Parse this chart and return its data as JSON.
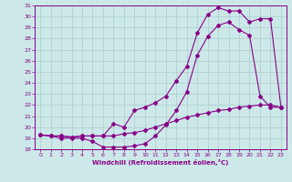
{
  "xlabel": "Windchill (Refroidissement éolien,°C)",
  "xlim": [
    -0.5,
    23.5
  ],
  "ylim": [
    18,
    31
  ],
  "yticks": [
    18,
    19,
    20,
    21,
    22,
    23,
    24,
    25,
    26,
    27,
    28,
    29,
    30,
    31
  ],
  "xticks": [
    0,
    1,
    2,
    3,
    4,
    5,
    6,
    7,
    8,
    9,
    10,
    11,
    12,
    13,
    14,
    15,
    16,
    17,
    18,
    19,
    20,
    21,
    22,
    23
  ],
  "line_color": "#880088",
  "bg_color": "#cce8e8",
  "grid_color": "#aacccc",
  "line1_x": [
    0,
    1,
    2,
    3,
    4,
    5,
    6,
    7,
    8,
    9,
    10,
    11,
    12,
    13,
    14,
    15,
    16,
    17,
    18,
    19,
    20,
    21,
    22,
    23
  ],
  "line1_y": [
    19.3,
    19.2,
    19.2,
    19.1,
    19.2,
    19.2,
    19.2,
    20.3,
    20.0,
    21.5,
    21.8,
    22.2,
    22.8,
    24.2,
    25.5,
    28.5,
    30.2,
    30.8,
    30.5,
    30.5,
    29.5,
    29.8,
    29.8,
    21.8
  ],
  "line2_x": [
    0,
    1,
    2,
    3,
    4,
    5,
    6,
    7,
    8,
    9,
    10,
    11,
    12,
    13,
    14,
    15,
    16,
    17,
    18,
    19,
    20,
    21,
    22,
    23
  ],
  "line2_y": [
    19.3,
    19.2,
    19.0,
    19.0,
    19.0,
    18.7,
    18.2,
    18.2,
    18.2,
    18.3,
    18.5,
    19.2,
    20.2,
    21.5,
    23.2,
    26.5,
    28.2,
    29.2,
    29.5,
    28.8,
    28.3,
    22.8,
    21.8,
    21.8
  ],
  "line3_x": [
    0,
    1,
    2,
    3,
    4,
    5,
    6,
    7,
    8,
    9,
    10,
    11,
    12,
    13,
    14,
    15,
    16,
    17,
    18,
    19,
    20,
    21,
    22,
    23
  ],
  "line3_y": [
    19.3,
    19.2,
    19.2,
    19.1,
    19.2,
    19.2,
    19.2,
    19.2,
    19.4,
    19.5,
    19.7,
    20.0,
    20.3,
    20.6,
    20.9,
    21.1,
    21.3,
    21.5,
    21.6,
    21.8,
    21.9,
    22.0,
    22.0,
    21.8
  ]
}
